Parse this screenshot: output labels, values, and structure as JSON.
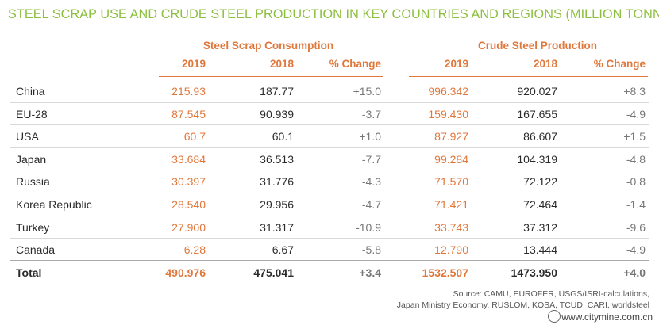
{
  "title": "STEEL SCRAP USE AND CRUDE STEEL PRODUCTION IN KEY COUNTRIES AND REGIONS (MILLION TONNES)",
  "groups": {
    "scrap": "Steel Scrap Consumption",
    "crude": "Crude Steel Production"
  },
  "columns": [
    "2019",
    "2018",
    "% Change",
    "2019",
    "2018",
    "% Change"
  ],
  "rows": [
    {
      "country": "China",
      "values": [
        "215.93",
        "187.77",
        "+15.0",
        "996.342",
        "920.027",
        "+8.3"
      ]
    },
    {
      "country": "EU-28",
      "values": [
        "87.545",
        "90.939",
        "-3.7",
        "159.430",
        "167.655",
        "-4.9"
      ]
    },
    {
      "country": "USA",
      "values": [
        "60.7",
        "60.1",
        "+1.0",
        "87.927",
        "86.607",
        "+1.5"
      ]
    },
    {
      "country": "Japan",
      "values": [
        "33.684",
        "36.513",
        "-7.7",
        "99.284",
        "104.319",
        "-4.8"
      ]
    },
    {
      "country": "Russia",
      "values": [
        "30.397",
        "31.776",
        "-4.3",
        "71.570",
        "72.122",
        "-0.8"
      ]
    },
    {
      "country": "Korea Republic",
      "values": [
        "28.540",
        "29.956",
        "-4.7",
        "71.421",
        "72.464",
        "-1.4"
      ]
    },
    {
      "country": "Turkey",
      "values": [
        "27.900",
        "31.317",
        "-10.9",
        "33.743",
        "37.312",
        "-9.6"
      ]
    },
    {
      "country": "Canada",
      "values": [
        "6.28",
        "6.67",
        "-5.8",
        "12.790",
        "13.444",
        "-4.9"
      ]
    }
  ],
  "total": {
    "country": "Total",
    "values": [
      "490.976",
      "475.041",
      "+3.4",
      "1532.507",
      "1473.950",
      "+4.0"
    ]
  },
  "source": {
    "line1": "Source: CAMU, EUROFER, USGS/ISRI-calculations,",
    "line2": "Japan Ministry Economy, RUSLOM, KOSA, TCUD, CARI, worldsteel"
  },
  "watermark": "www.citymine.com.cn",
  "colors": {
    "title": "#8cbf3f",
    "accent": "#e0783c"
  }
}
